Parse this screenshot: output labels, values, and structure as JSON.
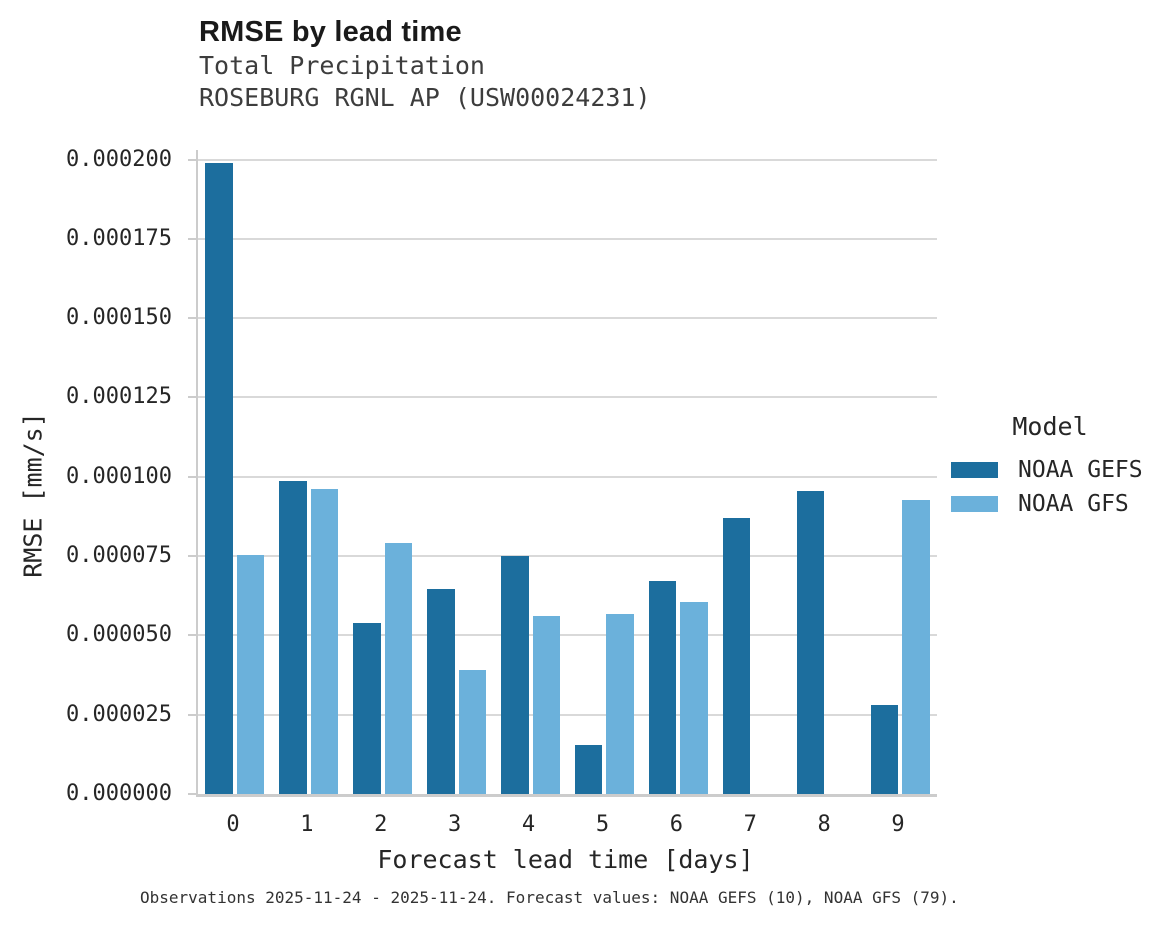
{
  "chart_data": {
    "type": "bar",
    "title": "RMSE by lead time",
    "subtitle": [
      "Total Precipitation",
      "ROSEBURG RGNL AP (USW00024231)"
    ],
    "xlabel": "Forecast lead time [days]",
    "ylabel": "RMSE [mm/s]",
    "legend_title": "Model",
    "legend_position": "right",
    "grid": true,
    "categories": [
      "0",
      "1",
      "2",
      "3",
      "4",
      "5",
      "6",
      "7",
      "8",
      "9"
    ],
    "series": [
      {
        "name": "NOAA GEFS",
        "color": "#1c6e9e",
        "values": [
          0.000199,
          9.88e-05,
          5.4e-05,
          6.45e-05,
          7.49e-05,
          1.56e-05,
          6.7e-05,
          8.71e-05,
          9.55e-05,
          2.81e-05
        ]
      },
      {
        "name": "NOAA GFS",
        "color": "#6bb1db",
        "values": [
          7.52e-05,
          9.61e-05,
          7.92e-05,
          3.9e-05,
          5.62e-05,
          5.66e-05,
          6.05e-05,
          null,
          null,
          9.27e-05
        ]
      }
    ],
    "ylim": [
      0,
      0.000203
    ],
    "y_ticks": [
      0,
      2.5e-05,
      5e-05,
      7.5e-05,
      0.0001,
      0.000125,
      0.00015,
      0.000175,
      0.0002
    ],
    "y_tick_labels": [
      "0.000000",
      "0.000025",
      "0.000050",
      "0.000075",
      "0.000100",
      "0.000125",
      "0.000150",
      "0.000175",
      "0.000200"
    ],
    "caption": "Observations 2025-11-24 - 2025-11-24. Forecast values: NOAA GEFS (10), NOAA GFS (79)."
  }
}
